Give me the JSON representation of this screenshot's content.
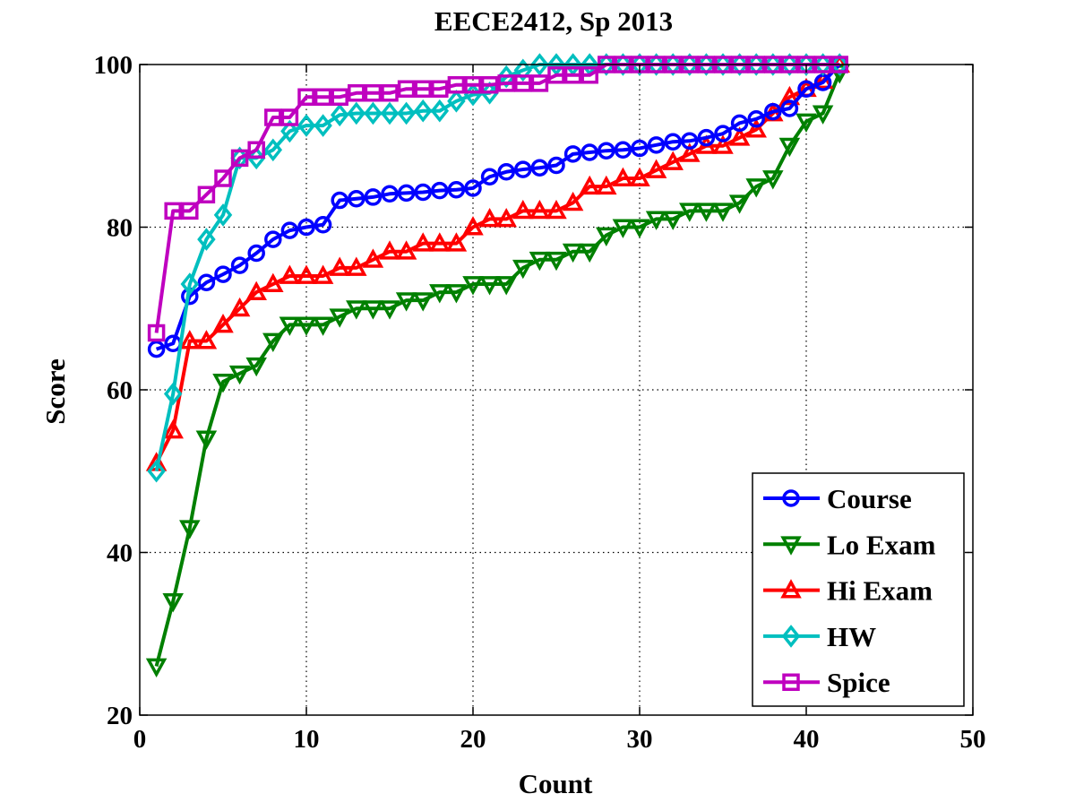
{
  "chart_data": {
    "type": "line",
    "title": "EECE2412, Sp 2013",
    "xlabel": "Count",
    "ylabel": "Score",
    "xlim": [
      0,
      50
    ],
    "ylim": [
      20,
      100
    ],
    "xticks": [
      "0",
      "10",
      "20",
      "30",
      "40",
      "50"
    ],
    "yticks": [
      "20",
      "40",
      "60",
      "80",
      "100"
    ],
    "grid": true,
    "legend_position": "bottom-right",
    "x": [
      1,
      2,
      3,
      4,
      5,
      6,
      7,
      8,
      9,
      10,
      11,
      12,
      13,
      14,
      15,
      16,
      17,
      18,
      19,
      20,
      21,
      22,
      23,
      24,
      25,
      26,
      27,
      28,
      29,
      30,
      31,
      32,
      33,
      34,
      35,
      36,
      37,
      38,
      39,
      40,
      41,
      42
    ],
    "series": [
      {
        "name": "Course",
        "color": "#0000ff",
        "marker": "circle",
        "values": [
          65,
          65.7,
          71.5,
          73.2,
          74.2,
          75.3,
          76.8,
          78.5,
          79.6,
          80,
          80.3,
          83.3,
          83.5,
          83.7,
          84.1,
          84.2,
          84.3,
          84.5,
          84.6,
          84.8,
          86.2,
          86.8,
          87.1,
          87.3,
          87.6,
          89,
          89.2,
          89.4,
          89.5,
          89.7,
          90.1,
          90.5,
          90.6,
          91,
          91.5,
          92.8,
          93.3,
          94.2,
          94.6,
          97,
          97.8,
          100
        ]
      },
      {
        "name": "Lo Exam",
        "color": "#008000",
        "marker": "triangle-down",
        "values": [
          26,
          34,
          43,
          54,
          61,
          62,
          63,
          66,
          68,
          68,
          68,
          69,
          70,
          70,
          70,
          71,
          71,
          72,
          72,
          73,
          73,
          73,
          75,
          76,
          76,
          77,
          77,
          79,
          80,
          80,
          81,
          81,
          82,
          82,
          82,
          83,
          85,
          86,
          90,
          93,
          94,
          99
        ]
      },
      {
        "name": "Hi Exam",
        "color": "#ff0000",
        "marker": "triangle-up",
        "values": [
          51,
          55,
          66,
          66,
          68,
          70,
          72,
          73,
          74,
          74,
          74,
          75,
          75,
          76,
          77,
          77,
          78,
          78,
          78,
          80,
          81,
          81,
          82,
          82,
          82,
          83,
          85,
          85,
          86,
          86,
          87,
          88,
          89,
          90,
          90,
          91,
          92,
          94,
          96,
          97,
          98,
          100
        ]
      },
      {
        "name": "HW",
        "color": "#00bfbf",
        "marker": "diamond",
        "values": [
          50,
          59.5,
          73,
          78.5,
          81.5,
          88.5,
          88.5,
          89.5,
          91.8,
          92.5,
          92.5,
          93.8,
          94,
          94,
          94,
          94,
          94.3,
          94.3,
          95.5,
          96.3,
          96.5,
          98.5,
          99.3,
          100,
          100,
          100,
          100,
          100,
          100,
          100,
          100,
          100,
          100,
          100,
          100,
          100,
          100,
          100,
          100,
          100,
          100,
          100
        ]
      },
      {
        "name": "Spice",
        "color": "#bf00bf",
        "marker": "square",
        "values": [
          67,
          82,
          82,
          84,
          86,
          88.5,
          89.5,
          93.5,
          93.5,
          96,
          96,
          96,
          96.5,
          96.5,
          96.5,
          97,
          97,
          97,
          97.5,
          97.5,
          97.5,
          97.7,
          97.7,
          97.7,
          98.7,
          98.7,
          98.7,
          100,
          100,
          100,
          100,
          100,
          100,
          100,
          100,
          100,
          100,
          100,
          100,
          100,
          100,
          100
        ]
      }
    ]
  }
}
